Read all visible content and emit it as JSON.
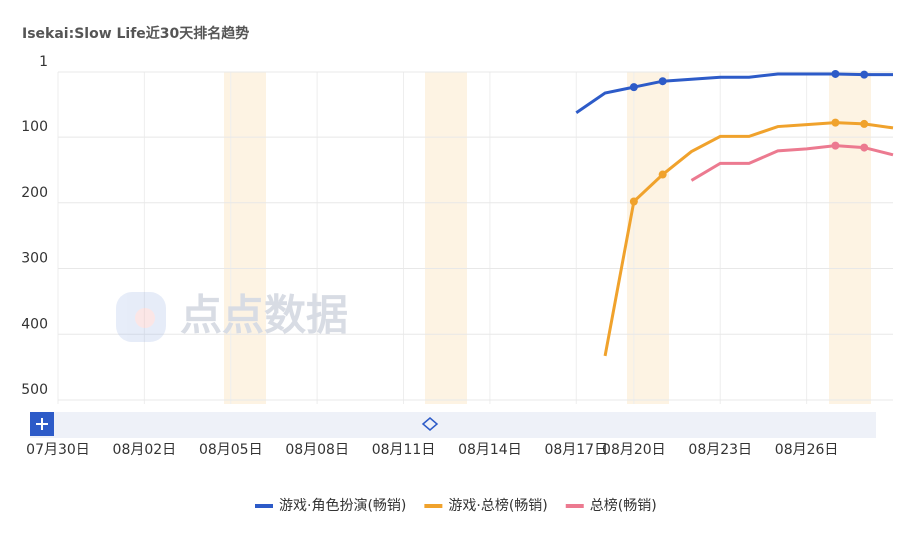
{
  "chart_data": {
    "type": "line",
    "title": "Isekai:Slow Life近30天排名趋势",
    "watermark": "点点数据",
    "categories": [
      "07月30日",
      null,
      null,
      "08月02日",
      null,
      null,
      "08月05日",
      null,
      null,
      "08月08日",
      null,
      null,
      "08月11日",
      null,
      null,
      "08月14日",
      null,
      null,
      "08月17日",
      null,
      "08月20日",
      null,
      null,
      "08月23日",
      null,
      null,
      "08月26日",
      null,
      null,
      null
    ],
    "series": [
      {
        "name": "游戏·角色扮演(畅销)",
        "color": "#2d5bc8",
        "values": [
          null,
          null,
          null,
          null,
          null,
          null,
          null,
          null,
          null,
          null,
          null,
          null,
          null,
          null,
          null,
          null,
          null,
          null,
          63,
          33,
          24,
          15,
          12,
          9,
          9,
          4,
          4,
          4,
          5,
          5
        ]
      },
      {
        "name": "游戏·总榜(畅销)",
        "color": "#f0a22c",
        "values": [
          null,
          null,
          null,
          null,
          null,
          null,
          null,
          null,
          null,
          null,
          null,
          null,
          null,
          null,
          null,
          null,
          null,
          null,
          null,
          433,
          198,
          157,
          122,
          99,
          99,
          84,
          81,
          78,
          80,
          86
        ]
      },
      {
        "name": "总榜(畅销)",
        "color": "#ec7a90",
        "values": [
          null,
          null,
          null,
          null,
          null,
          null,
          null,
          null,
          null,
          null,
          null,
          null,
          null,
          null,
          null,
          null,
          null,
          null,
          null,
          null,
          null,
          null,
          166,
          140,
          140,
          121,
          118,
          113,
          116,
          127
        ]
      }
    ],
    "ylim": [
      1,
      500
    ],
    "yticks": [
      1,
      100,
      200,
      300,
      400,
      500
    ],
    "y_inverted": true,
    "grid": true
  }
}
